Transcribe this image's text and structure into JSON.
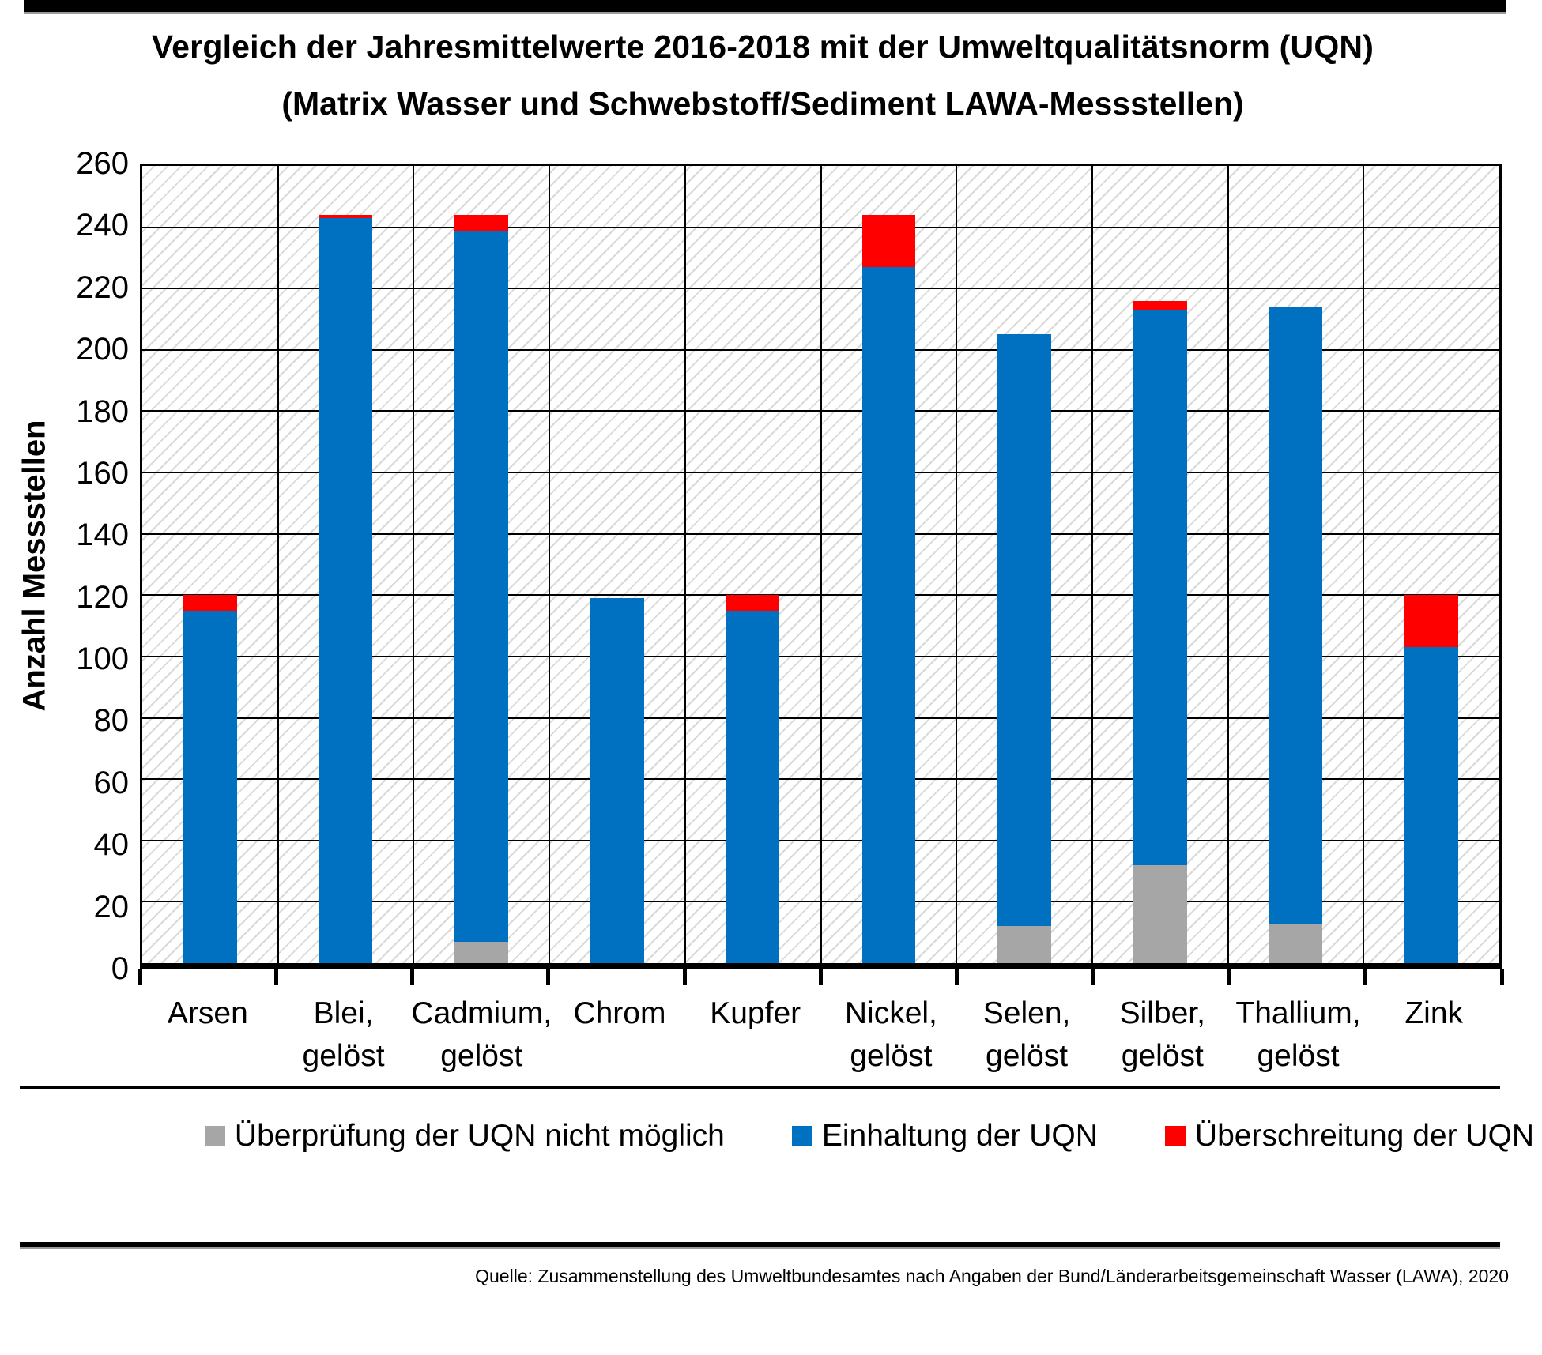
{
  "header": {
    "title": "Vergleich der Jahresmittelwerte 2016-2018 mit der Umweltqualitätsnorm (UQN)",
    "subtitle": "(Matrix Wasser und Schwebstoff/Sediment LAWA-Messstellen)"
  },
  "chart_data": {
    "type": "bar",
    "stacked": true,
    "title": "Vergleich der Jahresmittelwerte 2016-2018 mit der Umweltqualitätsnorm (UQN)",
    "subtitle": "(Matrix Wasser und Schwebstoff/Sediment LAWA-Messstellen)",
    "ylabel": "Anzahl Messstellen",
    "xlabel": "",
    "ylim": [
      0,
      260
    ],
    "ytick_step": 20,
    "grid": true,
    "hatched_background": true,
    "legend_position": "bottom",
    "categories": [
      "Arsen",
      "Blei, gelöst",
      "Cadmium,\ngelöst",
      "Chrom",
      "Kupfer",
      "Nickel,\ngelöst",
      "Selen,\ngelöst",
      "Silber,\ngelöst",
      "Thallium,\ngelöst",
      "Zink"
    ],
    "series": [
      {
        "name": "Überprüfung der UQN nicht möglich",
        "color": "#A6A6A6",
        "values": [
          0,
          0,
          7,
          0,
          0,
          0,
          12,
          32,
          13,
          0
        ]
      },
      {
        "name": "Einhaltung der UQN",
        "color": "#0070C0",
        "values": [
          115,
          243,
          232,
          119,
          115,
          227,
          193,
          181,
          201,
          103
        ]
      },
      {
        "name": "Überschreitung der UQN",
        "color": "#FF0000",
        "values": [
          5,
          1,
          5,
          0,
          5,
          17,
          0,
          3,
          0,
          17
        ]
      }
    ]
  },
  "footer": {
    "source": "Quelle: Zusammenstellung des Umweltbundesamtes nach Angaben der Bund/Länderarbeitsgemeinschaft Wasser (LAWA), 2020"
  }
}
